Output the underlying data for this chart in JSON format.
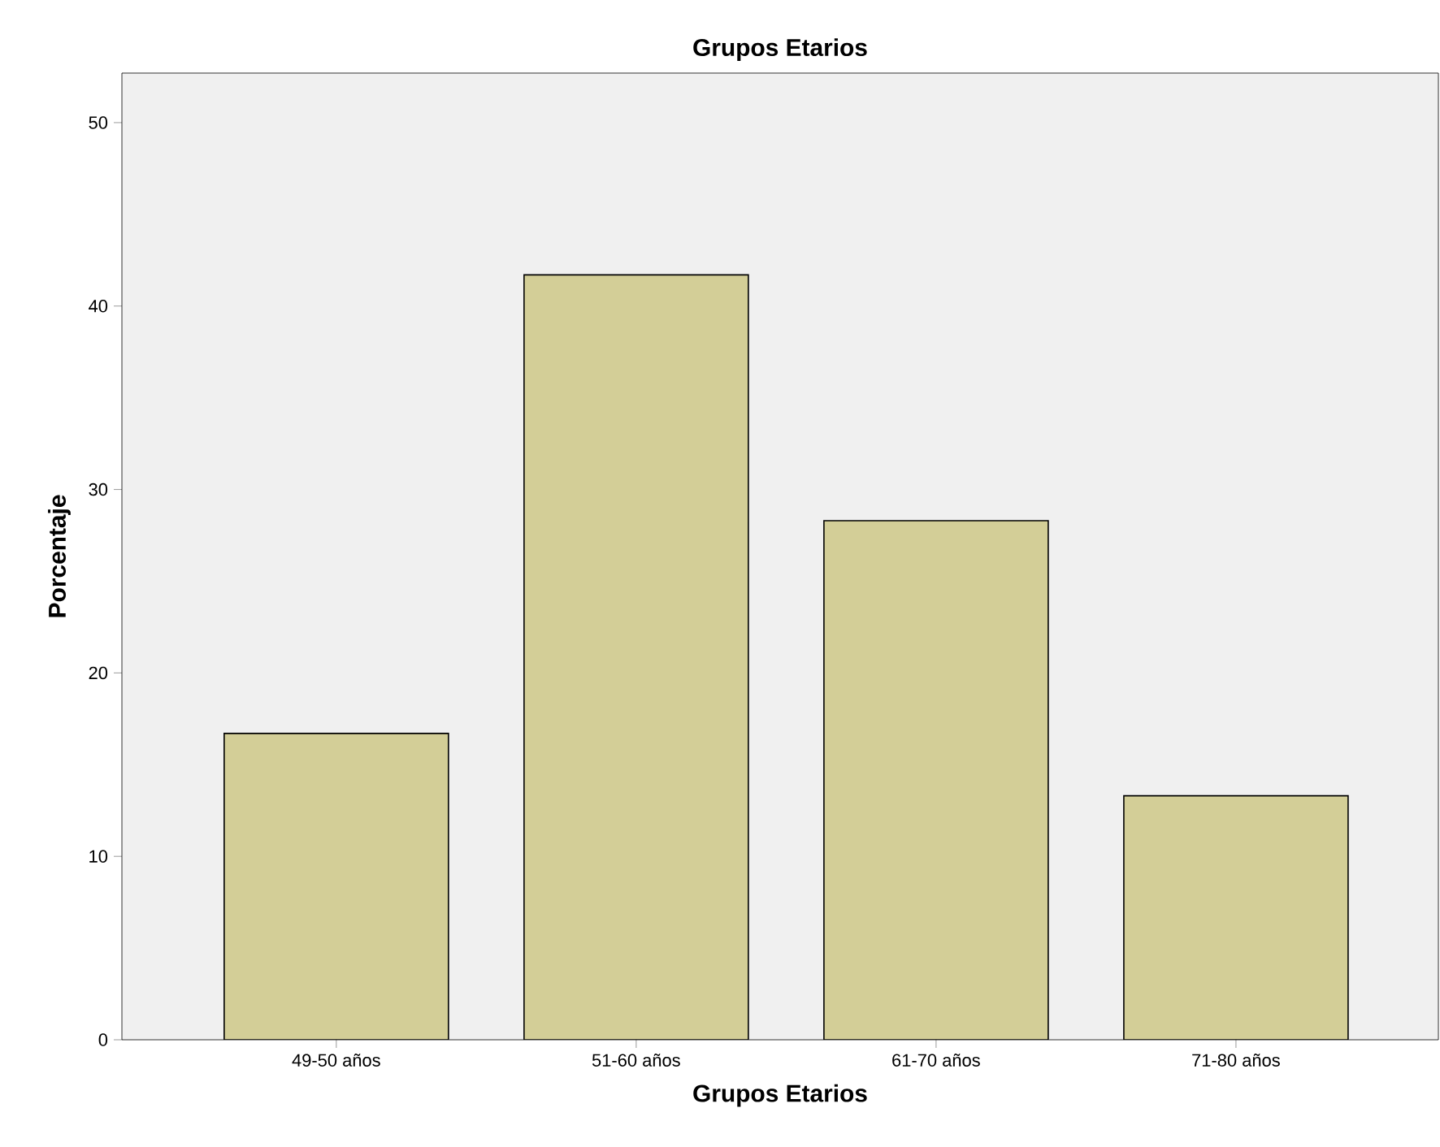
{
  "chart_data": {
    "type": "bar",
    "title": "Grupos Etarios",
    "xlabel": "Grupos Etarios",
    "ylabel": "Porcentaje",
    "categories": [
      "49-50 años",
      "51-60 años",
      "61-70 años",
      "71-80 años"
    ],
    "values": [
      16.7,
      41.7,
      28.3,
      13.3
    ],
    "color": "#d3ce97",
    "ylim": [
      0,
      52.7
    ],
    "yticks": [
      0,
      10,
      20,
      30,
      40,
      50
    ]
  }
}
